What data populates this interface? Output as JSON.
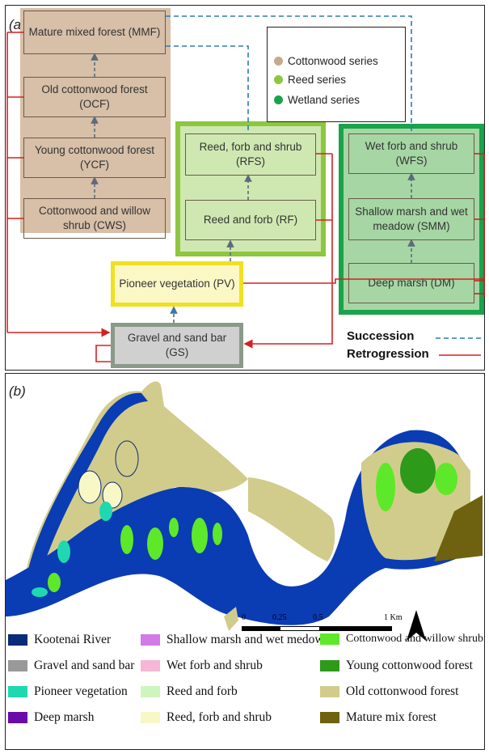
{
  "panel_a": {
    "label": "(a)",
    "cottonwood": [
      {
        "id": "mmf",
        "text": "Mature mixed forest (MMF)"
      },
      {
        "id": "ocf",
        "text": "Old cottonwood forest (OCF)"
      },
      {
        "id": "ycf",
        "text": "Young cottonwood forest (YCF)"
      },
      {
        "id": "cws",
        "text": "Cottonwood and willow shrub (CWS)"
      }
    ],
    "reed": [
      {
        "id": "rfs",
        "text": "Reed, forb and shrub (RFS)"
      },
      {
        "id": "rf",
        "text": "Reed and forb (RF)"
      }
    ],
    "wetland": [
      {
        "id": "wfs",
        "text": "Wet forb and shrub (WFS)"
      },
      {
        "id": "smm",
        "text": "Shallow marsh and wet meadow (SMM)"
      },
      {
        "id": "dm",
        "text": "Deep marsh (DM)"
      }
    ],
    "pv": "Pioneer vegetation (PV)",
    "gs": "Gravel and sand bar (GS)",
    "series_legend": [
      {
        "label": "Cottonwood series",
        "color": "#c8a98c"
      },
      {
        "label": "Reed series",
        "color": "#8dc63f"
      },
      {
        "label": "Wetland series",
        "color": "#1aa34a"
      }
    ],
    "succession": "Succession",
    "retrogression": "Retrogression",
    "colors": {
      "succession": "#2b7bbf",
      "retrogression": "#d62020",
      "cottonwood_fill": "#d7bfa8",
      "reed_border": "#8dc63f",
      "wetland_border": "#1aa34a",
      "pv_border": "#f0e020",
      "gs_border": "#8a9a8a"
    }
  },
  "panel_b": {
    "label": "(b)",
    "scale": {
      "ticks": [
        "0",
        "0.25",
        "0.5",
        "1 Km"
      ]
    },
    "north": "N",
    "legend": [
      {
        "label": "Kootenai River",
        "color": "#0a2a7a"
      },
      {
        "label": "Gravel and sand bar",
        "color": "#999999"
      },
      {
        "label": "Pioneer vegetation",
        "color": "#1fd8b0"
      },
      {
        "label": "Deep marsh",
        "color": "#6a0aa8"
      },
      {
        "label": "Shallow marsh and wet medow",
        "color": "#d27ae8"
      },
      {
        "label": "Wet forb and shrub",
        "color": "#f6b6d6"
      },
      {
        "label": "Reed and forb",
        "color": "#cdf5c0"
      },
      {
        "label": "Reed, forb and shrub",
        "color": "#f8f7c6"
      },
      {
        "label": "Cottonwood and willow shrub",
        "color": "#5ee82a"
      },
      {
        "label": "Young cottonwood forest",
        "color": "#2d9a1a"
      },
      {
        "label": "Old cottonwood forest",
        "color": "#d2cc8c"
      },
      {
        "label": "Mature mix forest",
        "color": "#6e6210"
      }
    ],
    "map_colors": {
      "river": "#0a3cb4",
      "old": "#d2cc8c",
      "reed": "#f8f7c6",
      "pioneer": "#1fd8b0",
      "cws": "#5ee82a",
      "ycf": "#2d9a1a",
      "mature": "#6e6210",
      "gravel": "#999999",
      "edge": "#0a2a7a"
    }
  }
}
